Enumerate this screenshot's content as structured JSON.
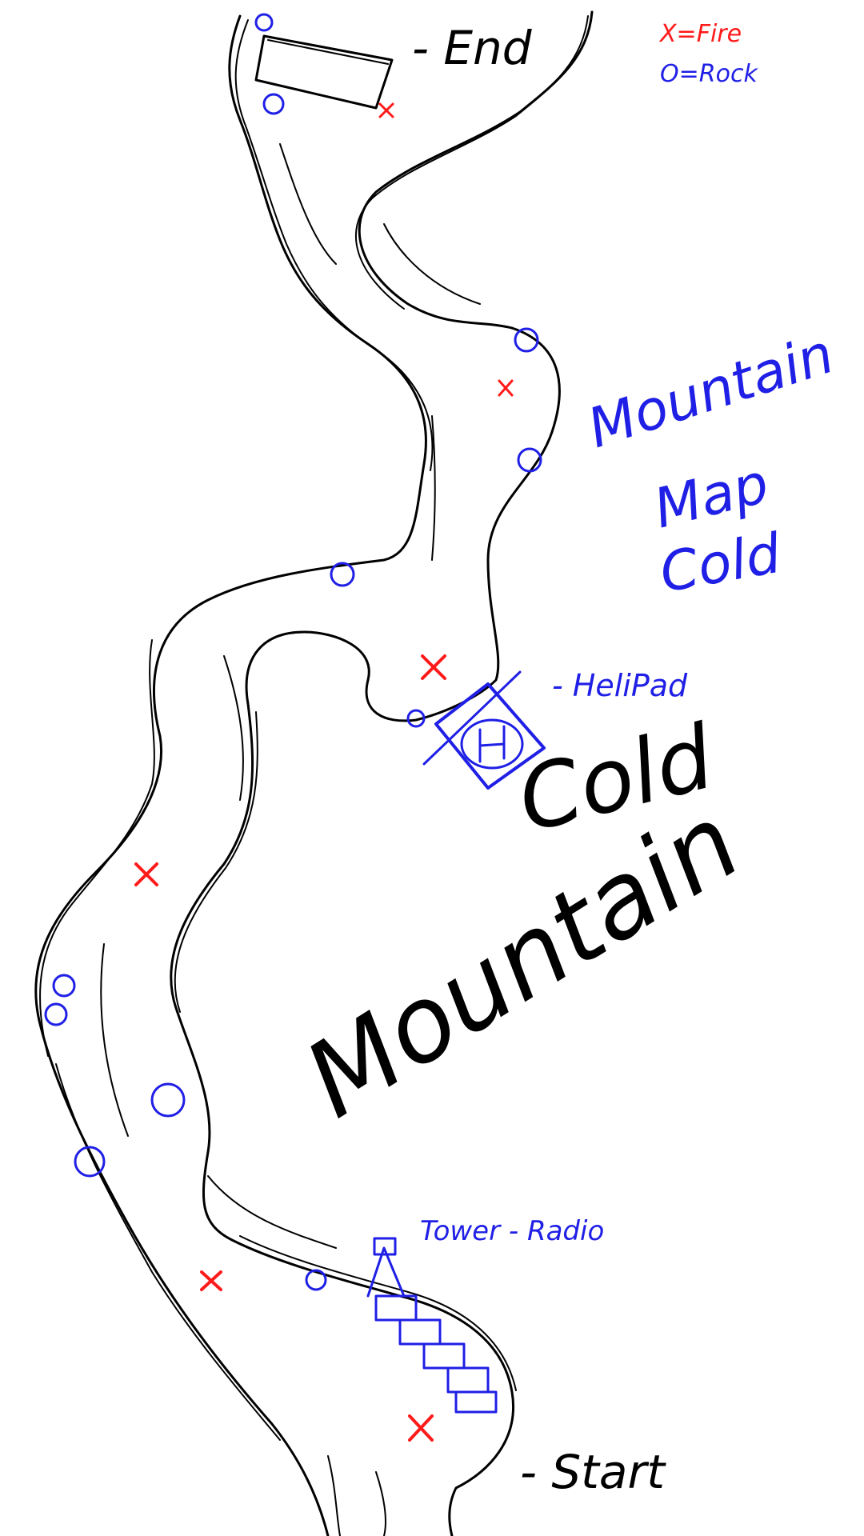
{
  "legend": {
    "fire_label": "X=Fire",
    "rock_label": "O=Rock"
  },
  "labels": {
    "end": "- End",
    "start": "- Start",
    "helipad": "- HeliPad",
    "tower": "Tower - Radio",
    "map_title_line1": "Mountain",
    "map_title_line2": "Map",
    "map_title_line3": "Cold",
    "cold": "Cold",
    "mountain": "Mountain"
  },
  "colors": {
    "path": "#000000",
    "rock": "#1f1fe6",
    "fire": "#ff1a1a"
  },
  "icons": {
    "fire": "red-x-marker",
    "rock": "blue-circle-marker",
    "helipad": "helipad-h-icon",
    "tower": "radio-tower-icon"
  }
}
